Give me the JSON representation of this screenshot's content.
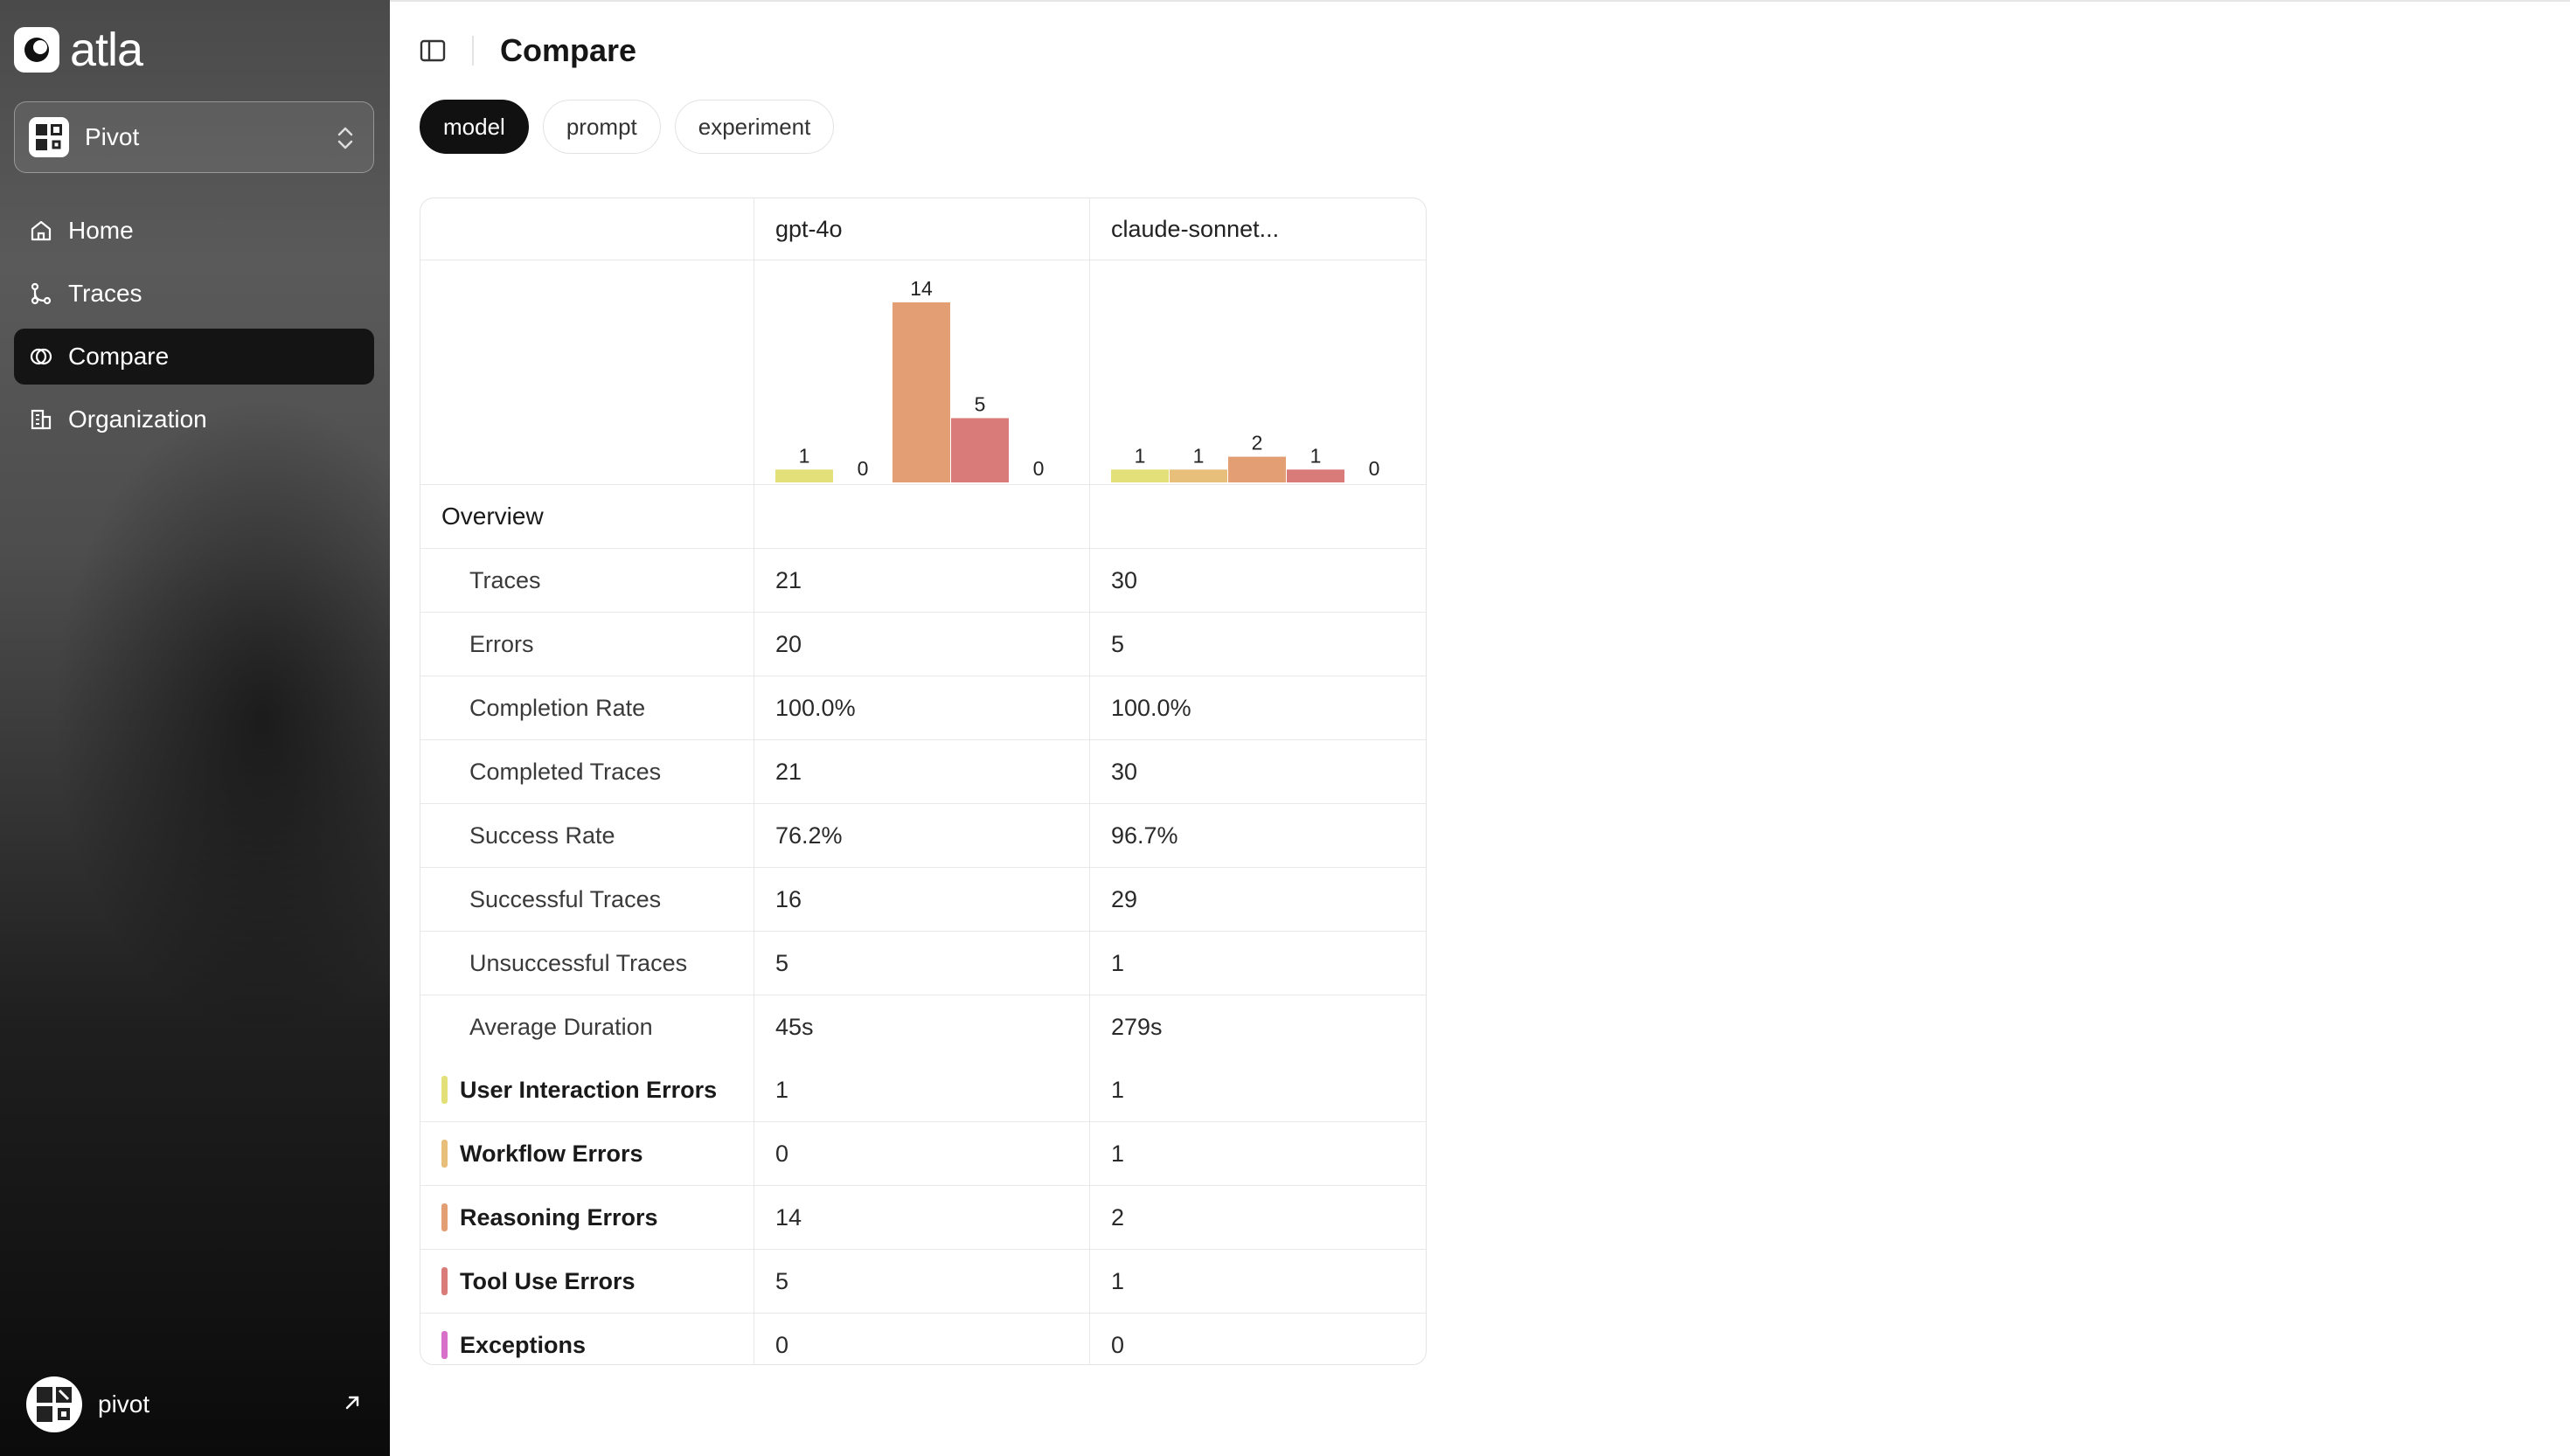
{
  "app": {
    "brand": "atla"
  },
  "workspace": {
    "name": "Pivot"
  },
  "nav": {
    "items": [
      {
        "label": "Home",
        "icon": "home-icon",
        "active": false
      },
      {
        "label": "Traces",
        "icon": "git-branch-icon",
        "active": false
      },
      {
        "label": "Compare",
        "icon": "compare-icon",
        "active": true
      },
      {
        "label": "Organization",
        "icon": "building-icon",
        "active": false
      }
    ]
  },
  "user": {
    "name": "pivot"
  },
  "header": {
    "title": "Compare"
  },
  "group_by": {
    "options": [
      {
        "label": "model",
        "active": true
      },
      {
        "label": "prompt",
        "active": false
      },
      {
        "label": "experiment",
        "active": false
      }
    ]
  },
  "table": {
    "columns": [
      "gpt-4o",
      "claude-sonnet..."
    ],
    "overview_label": "Overview",
    "metrics": [
      {
        "label": "Traces",
        "values": [
          "21",
          "30"
        ]
      },
      {
        "label": "Errors",
        "values": [
          "20",
          "5"
        ]
      },
      {
        "label": "Completion Rate",
        "values": [
          "100.0%",
          "100.0%"
        ]
      },
      {
        "label": "Completed Traces",
        "values": [
          "21",
          "30"
        ]
      },
      {
        "label": "Success Rate",
        "values": [
          "76.2%",
          "96.7%"
        ]
      },
      {
        "label": "Successful Traces",
        "values": [
          "16",
          "29"
        ]
      },
      {
        "label": "Unsuccessful Traces",
        "values": [
          "5",
          "1"
        ]
      },
      {
        "label": "Average Duration",
        "values": [
          "45s",
          "279s"
        ]
      }
    ],
    "error_types": [
      {
        "label": "User Interaction Errors",
        "color": "#e3e07a",
        "values": [
          "1",
          "1"
        ]
      },
      {
        "label": "Workflow Errors",
        "color": "#e8bf7a",
        "values": [
          "0",
          "1"
        ]
      },
      {
        "label": "Reasoning Errors",
        "color": "#e39e74",
        "values": [
          "14",
          "2"
        ]
      },
      {
        "label": "Tool Use Errors",
        "color": "#d97b78",
        "values": [
          "5",
          "1"
        ]
      },
      {
        "label": "Exceptions",
        "color": "#d86fc8",
        "values": [
          "0",
          "0"
        ]
      }
    ]
  },
  "chart_data": [
    {
      "type": "bar",
      "categories": [
        "User Interaction Errors",
        "Workflow Errors",
        "Reasoning Errors",
        "Tool Use Errors",
        "Exceptions"
      ],
      "values": [
        1,
        0,
        14,
        5,
        0
      ],
      "colors": [
        "#e3e07a",
        "#e8bf7a",
        "#e39e74",
        "#d97b78",
        "#d86fc8"
      ],
      "title": "",
      "xlabel": "",
      "ylabel": "",
      "ylim": [
        0,
        14
      ],
      "grid": false
    },
    {
      "type": "bar",
      "categories": [
        "User Interaction Errors",
        "Workflow Errors",
        "Reasoning Errors",
        "Tool Use Errors",
        "Exceptions"
      ],
      "values": [
        1,
        1,
        2,
        1,
        0
      ],
      "colors": [
        "#e3e07a",
        "#e8bf7a",
        "#e39e74",
        "#d97b78",
        "#d86fc8"
      ],
      "title": "",
      "xlabel": "",
      "ylabel": "",
      "ylim": [
        0,
        14
      ],
      "grid": false
    }
  ]
}
